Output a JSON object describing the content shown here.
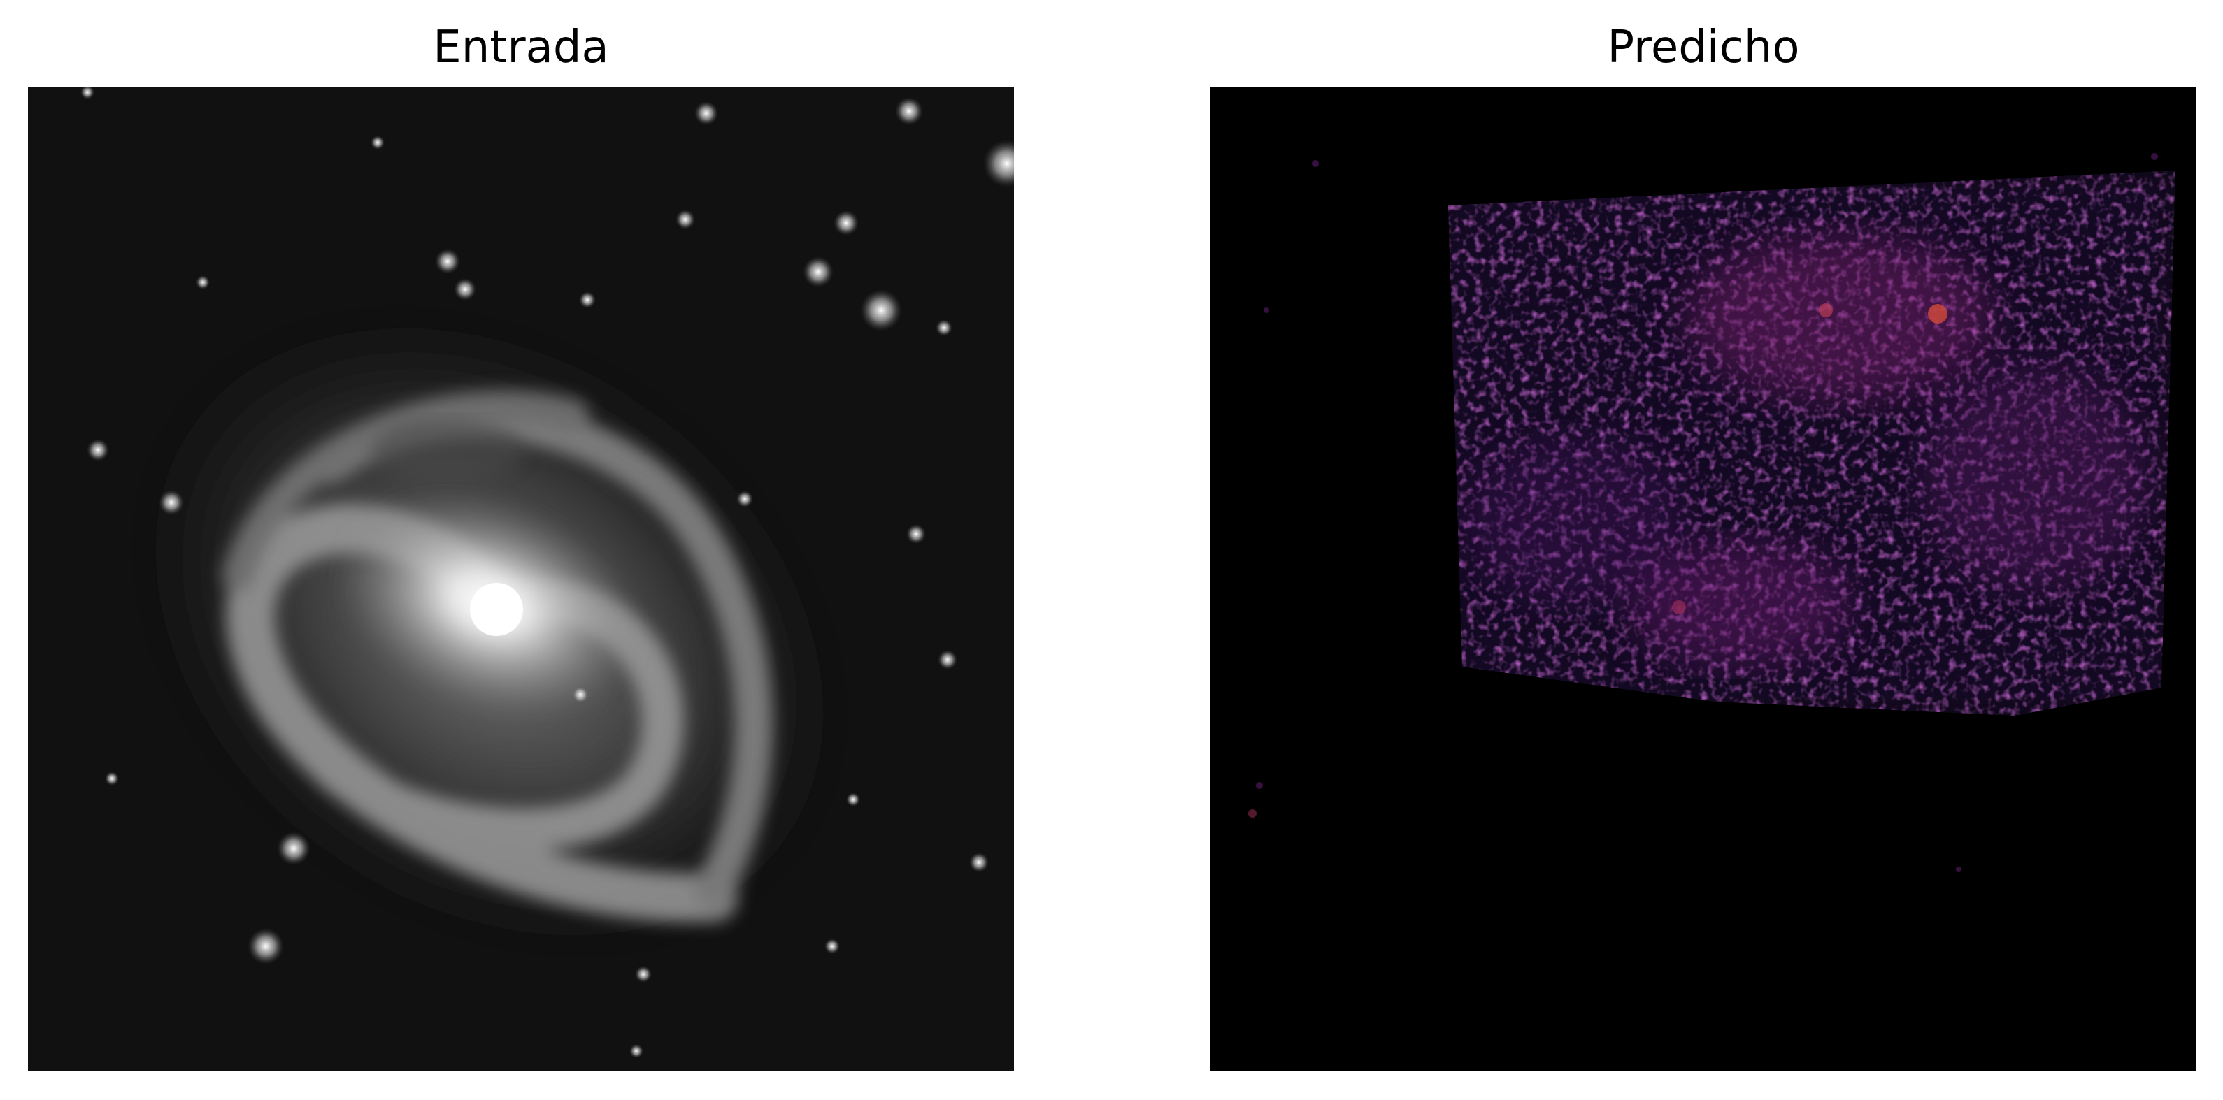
{
  "figure": {
    "panels": [
      {
        "title": "Entrada",
        "colormap": "gray",
        "colors": {
          "background": "#0d0d0d",
          "core": "#ffffff",
          "arm": "#9a9a9a",
          "star": "#e6e6e6"
        },
        "icon": "galaxy-image"
      },
      {
        "title": "Predicho",
        "colormap": "inferno",
        "colors": {
          "background": "#000000",
          "low": "#2a0a45",
          "mid": "#6b1f6e",
          "high": "#d24a3a"
        },
        "icon": "prediction-heatmap-image"
      }
    ]
  }
}
